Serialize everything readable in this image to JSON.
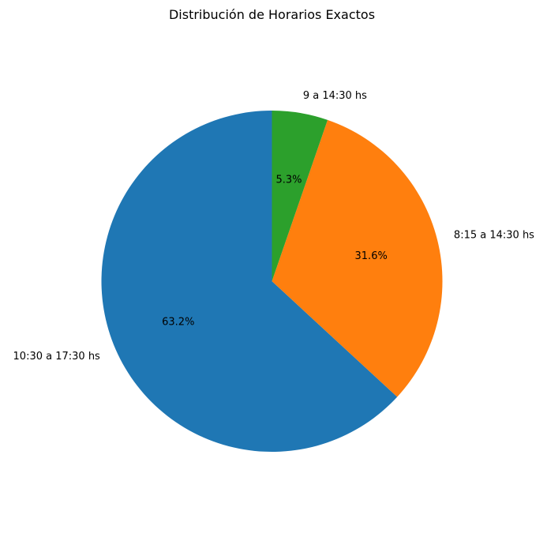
{
  "chart_data": {
    "type": "pie",
    "title": "Distribución de Horarios Exactos",
    "labels": [
      "10:30 a 17:30 hs",
      "8:15 a 14:30 hs",
      "9 a 14:30 hs"
    ],
    "values": [
      63.2,
      31.6,
      5.3
    ],
    "pct_labels": [
      "63.2%",
      "31.6%",
      "5.3%"
    ],
    "colors": [
      "#1f77b4",
      "#ff7f0e",
      "#2ca02c"
    ],
    "start_angle_deg": 90,
    "direction": "counterclockwise"
  }
}
